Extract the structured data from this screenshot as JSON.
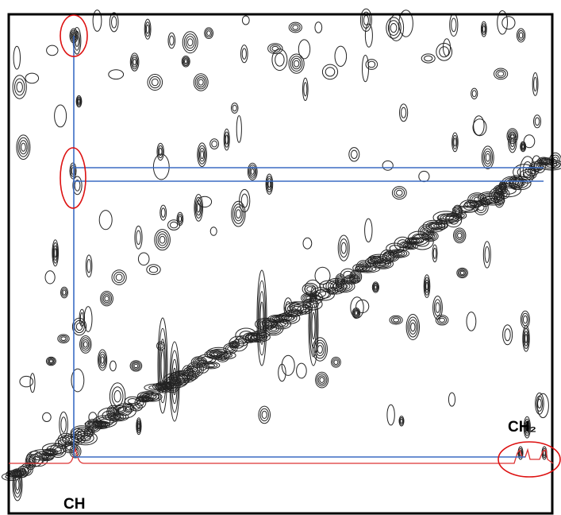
{
  "labels": {
    "ch": "CH",
    "ch2": "CH₂"
  }
}
